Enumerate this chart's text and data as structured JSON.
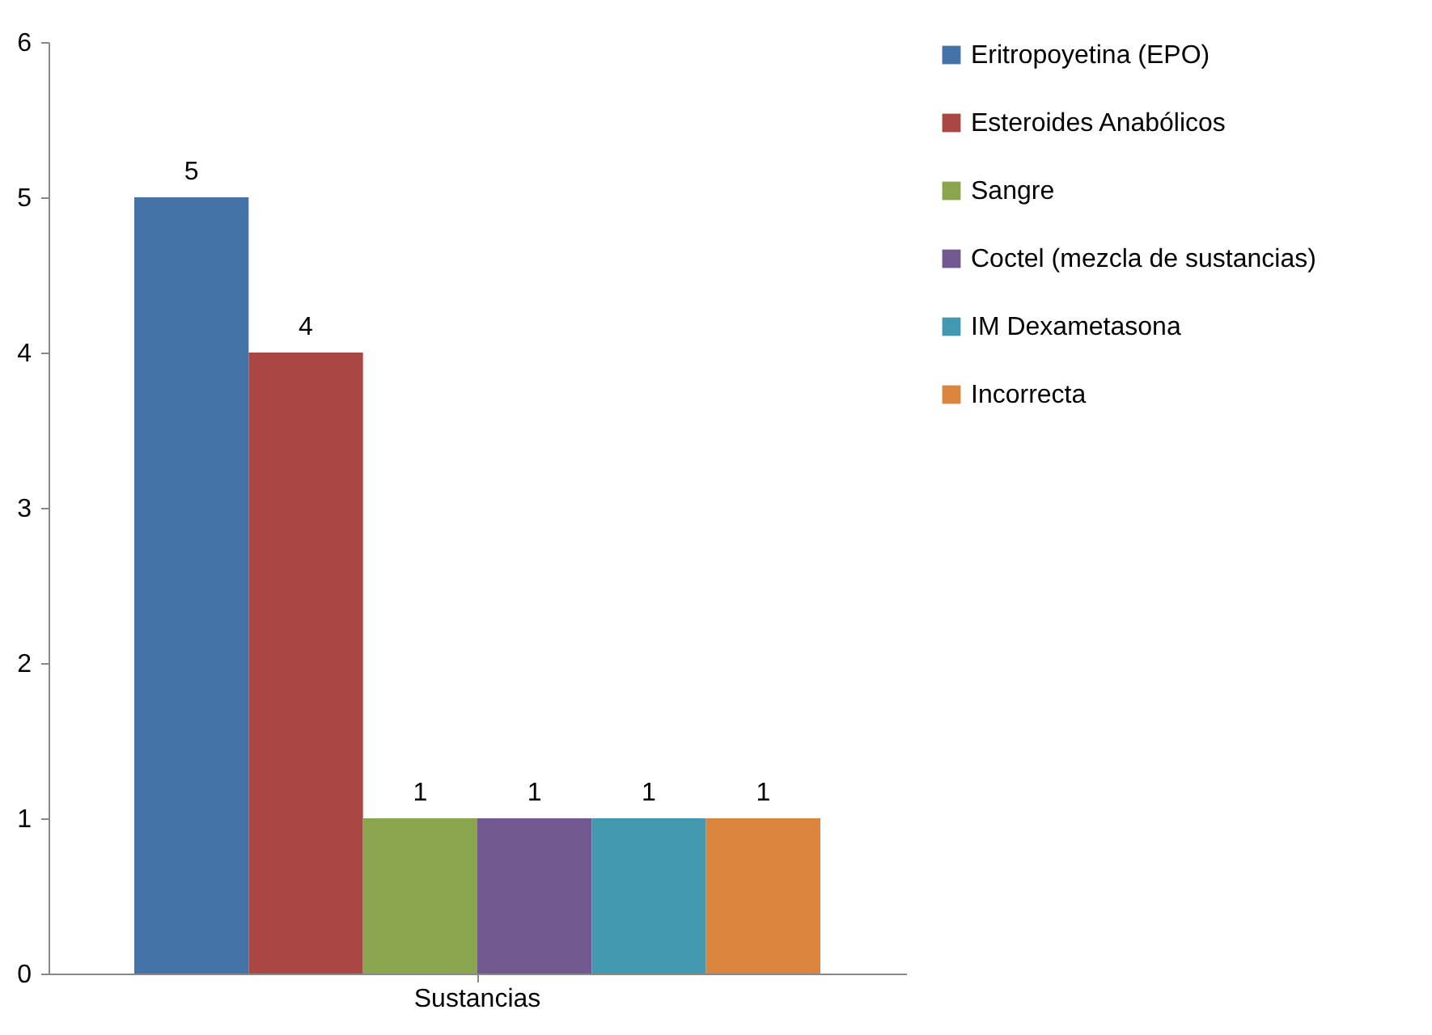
{
  "chart_data": {
    "type": "bar",
    "categories": [
      "Sustancias"
    ],
    "series": [
      {
        "name": "Eritropoyetina (EPO)",
        "color": "#4572a7",
        "values": [
          5
        ]
      },
      {
        "name": "Esteroides Anabólicos",
        "color": "#aa4643",
        "values": [
          4
        ]
      },
      {
        "name": "Sangre",
        "color": "#89a54e",
        "values": [
          1
        ]
      },
      {
        "name": "Coctel (mezcla de sustancias)",
        "color": "#71588f",
        "values": [
          1
        ]
      },
      {
        "name": "IM Dexametasona",
        "color": "#4198af",
        "values": [
          1
        ]
      },
      {
        "name": "Incorrecta",
        "color": "#db843d",
        "values": [
          1
        ]
      }
    ],
    "ylim": [
      0,
      6
    ],
    "yticks": [
      0,
      1,
      2,
      3,
      4,
      5,
      6
    ],
    "grid": false,
    "legend": "right",
    "data_labels": true
  }
}
